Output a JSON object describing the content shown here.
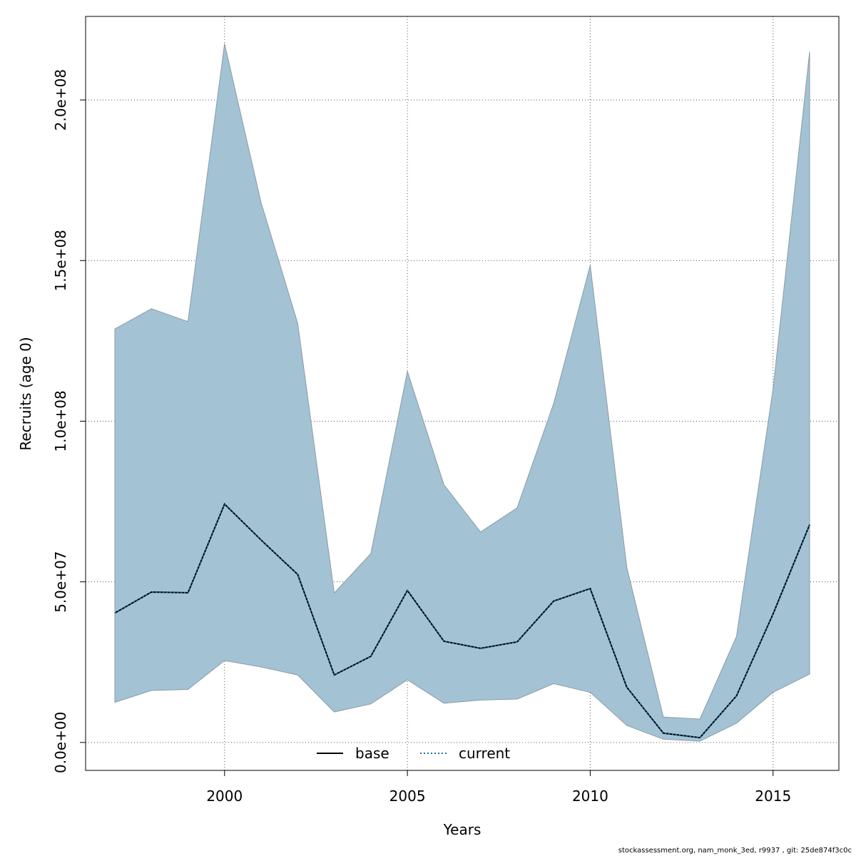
{
  "chart_data": {
    "type": "area",
    "xlabel": "Years",
    "ylabel": "Recruits (age 0)",
    "xlim": [
      1996.2,
      2016.8
    ],
    "ylim": [
      -8700000,
      226000000
    ],
    "x_ticks": [
      2000,
      2005,
      2010,
      2015
    ],
    "x_tick_labels": [
      "2000",
      "2005",
      "2010",
      "2015"
    ],
    "y_ticks": [
      0,
      50000000,
      100000000,
      150000000,
      200000000
    ],
    "y_tick_labels": [
      "0.0e+00",
      "5.0e+07",
      "1.0e+08",
      "1.5e+08",
      "2.0e+08"
    ],
    "grid": true,
    "legend_position": "bottom",
    "x": [
      1997,
      1998,
      1999,
      2000,
      2001,
      2002,
      2003,
      2004,
      2005,
      2006,
      2007,
      2008,
      2009,
      2010,
      2011,
      2012,
      2013,
      2014,
      2015,
      2016
    ],
    "band": {
      "name": "confidence interval",
      "color": "#a3c3d5",
      "lower": [
        12500000,
        16200000,
        16500000,
        25500000,
        23500000,
        21000000,
        9500000,
        12000000,
        19500000,
        12200000,
        13200000,
        13500000,
        18300000,
        15600000,
        5300000,
        1000000,
        400000,
        6000000,
        15600000,
        21300000
      ],
      "upper": [
        128700000,
        135000000,
        131000000,
        217500000,
        168000000,
        130500000,
        46500000,
        58800000,
        115500000,
        80200000,
        65500000,
        73000000,
        105500000,
        148500000,
        54500000,
        7900000,
        7300000,
        33000000,
        110000000,
        215000000
      ]
    },
    "series": [
      {
        "name": "base",
        "color": "#000000",
        "style": "solid",
        "values": [
          40300000,
          46800000,
          46600000,
          74200000,
          63000000,
          52300000,
          21000000,
          26800000,
          47300000,
          31500000,
          29300000,
          31300000,
          44000000,
          47900000,
          17200000,
          2900000,
          1500000,
          14500000,
          40000000,
          67800000
        ]
      },
      {
        "name": "current",
        "color": "#1f6fa8",
        "style": "dotted",
        "values": [
          40300000,
          46800000,
          46600000,
          74200000,
          63000000,
          52300000,
          21000000,
          26800000,
          47300000,
          31500000,
          29300000,
          31300000,
          44000000,
          47900000,
          17200000,
          2900000,
          1500000,
          14500000,
          40000000,
          67800000
        ]
      }
    ]
  },
  "footer_text": "stockassessment.org, nam_monk_3ed, r9937 , git: 25de874f3c0c"
}
